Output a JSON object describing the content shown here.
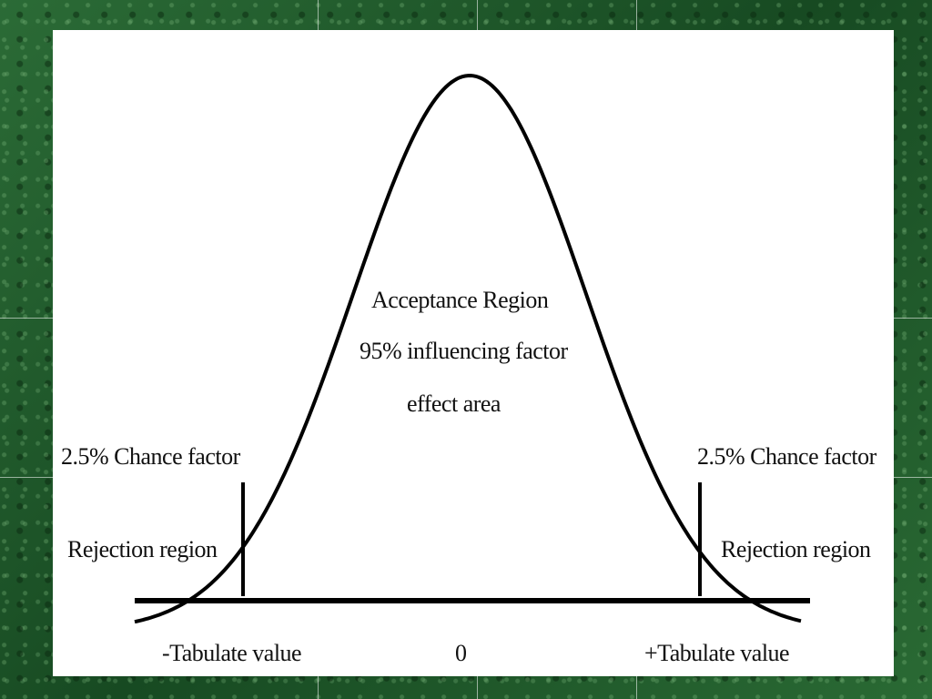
{
  "slide": {
    "background": "#1f5a2c",
    "panel_color": "#ffffff"
  },
  "diagram": {
    "type": "normal-distribution",
    "acceptance": {
      "line1": "Acceptance Region",
      "line2": "95% influencing factor",
      "line3": "effect area"
    },
    "left_tail": {
      "chance": "2.5% Chance factor",
      "rejection": "Rejection region"
    },
    "right_tail": {
      "chance": "2.5% Chance factor",
      "rejection": "Rejection region"
    },
    "axis": {
      "left_label": "-Tabulate value",
      "center_label": "0",
      "right_label": "+Tabulate value"
    },
    "line_color": "#000000"
  }
}
